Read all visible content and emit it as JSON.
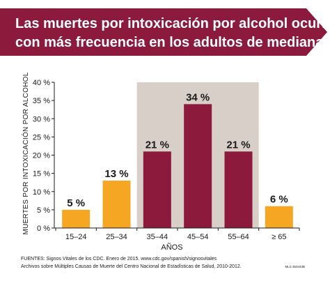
{
  "title_lines": [
    "Las muertes por intoxicación por alcohol ocurren",
    "con más frecuencia en los adultos de mediana edad"
  ],
  "colors": {
    "banner": "#8c1a3c",
    "highlight_bar": "#8c1a3c",
    "normal_bar": "#f5a623",
    "highlight_bg": "#d8d0c8"
  },
  "chart_data": {
    "type": "bar",
    "categories": [
      "15–24",
      "25–34",
      "35–44",
      "45–54",
      "55–64",
      "≥ 65"
    ],
    "values": [
      5,
      13,
      21,
      34,
      21,
      6
    ],
    "data_labels": [
      "5 %",
      "13 %",
      "21 %",
      "34 %",
      "21 %",
      "6 %"
    ],
    "highlighted": [
      false,
      false,
      true,
      true,
      true,
      false
    ],
    "highlight_range": [
      "35–44",
      "55–64"
    ],
    "ylim": [
      0,
      40
    ],
    "yticks": [
      0,
      5,
      10,
      15,
      20,
      25,
      30,
      35,
      40
    ],
    "ytick_labels": [
      "0 %",
      "5 %",
      "10 %",
      "15 %",
      "20 %",
      "25 %",
      "30 %",
      "35 %",
      "40 %"
    ],
    "xlabel": "AÑOS",
    "ylabel": "MUERTES POR INTOXICACIÓN POR ALCOHOL",
    "grid": false
  },
  "sources": [
    "FUENTES: Signos Vitales de los CDC. Enero de 2015. www.cdc.gov/spanish/signosvitales",
    "Archivos sobre Múltiples Causas de Muerte del Centro Nacional de Estadísticas de Salud, 2010-2012."
  ],
  "code": "MLS 353443B"
}
